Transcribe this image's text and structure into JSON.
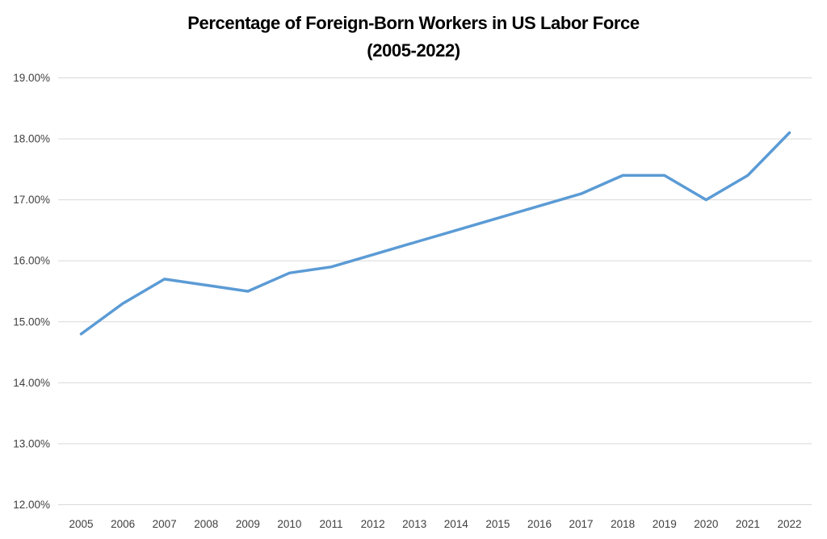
{
  "chart_data": {
    "type": "line",
    "title": "Percentage of Foreign-Born Workers in US Labor Force (2005-2022)",
    "title_line1": "Percentage of Foreign-Born Workers in US Labor Force",
    "title_line2": "(2005-2022)",
    "categories": [
      "2005",
      "2006",
      "2007",
      "2008",
      "2009",
      "2010",
      "2011",
      "2012",
      "2013",
      "2014",
      "2015",
      "2016",
      "2017",
      "2018",
      "2019",
      "2020",
      "2021",
      "2022"
    ],
    "values": [
      14.8,
      15.3,
      15.7,
      15.6,
      15.5,
      15.8,
      15.9,
      16.1,
      16.3,
      16.5,
      16.7,
      16.9,
      17.1,
      17.4,
      17.4,
      17.0,
      17.4,
      18.1
    ],
    "unit": "%",
    "xlabel": "",
    "ylabel": "",
    "y_axis": {
      "min": 12,
      "max": 19,
      "step": 1,
      "tick_labels": [
        "19.00%",
        "18.00%",
        "17.00%",
        "16.00%",
        "15.00%",
        "14.00%",
        "13.00%",
        "12.00%"
      ],
      "tick_values": [
        19,
        18,
        17,
        16,
        15,
        14,
        13,
        12
      ]
    },
    "grid": "horizontal",
    "legend": "none",
    "colors": {
      "line": "#5B9BD5",
      "gridline": "#D9D9D9",
      "tick_label": "#404040",
      "title": "#000000",
      "background": "#FFFFFF"
    }
  }
}
